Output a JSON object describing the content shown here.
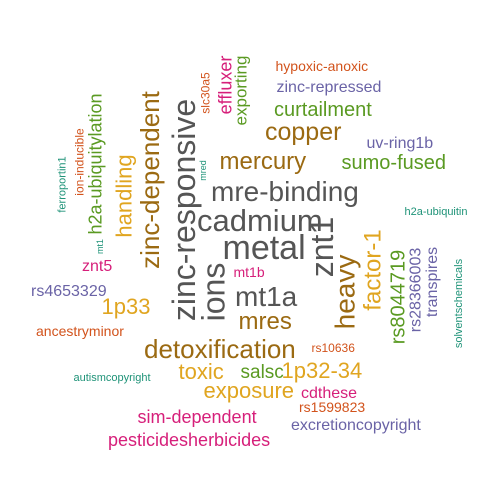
{
  "palette": {
    "gray": "#555555",
    "brown": "#9b6a12",
    "gold": "#e0a520",
    "green": "#5a9a22",
    "magenta": "#d61f7a",
    "orange": "#d2531c",
    "purple": "#6a63a6",
    "teal": "#1f9378"
  },
  "words": [
    {
      "text": "metal",
      "color": "gray"
    },
    {
      "text": "cadmium",
      "color": "gray"
    },
    {
      "text": "mre-binding",
      "color": "gray"
    },
    {
      "text": "zinc-responsive",
      "color": "gray"
    },
    {
      "text": "ions",
      "color": "gray"
    },
    {
      "text": "mt1a",
      "color": "gray"
    },
    {
      "text": "znt1",
      "color": "gray"
    },
    {
      "text": "heavy",
      "color": "brown"
    },
    {
      "text": "detoxification",
      "color": "brown"
    },
    {
      "text": "zinc-dependent",
      "color": "brown"
    },
    {
      "text": "copper",
      "color": "brown"
    },
    {
      "text": "mercury",
      "color": "brown"
    },
    {
      "text": "mres",
      "color": "brown"
    },
    {
      "text": "factor-1",
      "color": "gold"
    },
    {
      "text": "exposure",
      "color": "gold"
    },
    {
      "text": "handling",
      "color": "gold"
    },
    {
      "text": "1p33",
      "color": "gold"
    },
    {
      "text": "toxic",
      "color": "gold"
    },
    {
      "text": "1p32-34",
      "color": "gold"
    },
    {
      "text": "salsc",
      "color": "green"
    },
    {
      "text": "curtailment",
      "color": "green"
    },
    {
      "text": "sumo-fused",
      "color": "green"
    },
    {
      "text": "rs8044719",
      "color": "green"
    },
    {
      "text": "exporting",
      "color": "green"
    },
    {
      "text": "h2a-ubiquitylation",
      "color": "green"
    },
    {
      "text": "sim-dependent",
      "color": "magenta"
    },
    {
      "text": "pesticidesherbicides",
      "color": "magenta"
    },
    {
      "text": "cdthese",
      "color": "magenta"
    },
    {
      "text": "effluxer",
      "color": "magenta"
    },
    {
      "text": "znt5",
      "color": "magenta"
    },
    {
      "text": "mt1b",
      "color": "magenta"
    },
    {
      "text": "rs1599823",
      "color": "orange"
    },
    {
      "text": "rs10636",
      "color": "orange"
    },
    {
      "text": "ancestryminor",
      "color": "orange"
    },
    {
      "text": "hypoxic-anoxic",
      "color": "orange"
    },
    {
      "text": "slc30a5",
      "color": "orange"
    },
    {
      "text": "ion-inducible",
      "color": "orange"
    },
    {
      "text": "zinc-repressed",
      "color": "purple"
    },
    {
      "text": "uv-ring1b",
      "color": "purple"
    },
    {
      "text": "rs4653329",
      "color": "purple"
    },
    {
      "text": "rs28366003",
      "color": "purple"
    },
    {
      "text": "transpires",
      "color": "purple"
    },
    {
      "text": "excretioncopyright",
      "color": "purple"
    },
    {
      "text": "h2a-ubiquitin",
      "color": "teal"
    },
    {
      "text": "solventschemicals",
      "color": "teal"
    },
    {
      "text": "autismcopyright",
      "color": "teal"
    },
    {
      "text": "ferroportin1",
      "color": "teal"
    },
    {
      "text": "mt1",
      "color": "teal"
    },
    {
      "text": "mred",
      "color": "teal"
    }
  ]
}
